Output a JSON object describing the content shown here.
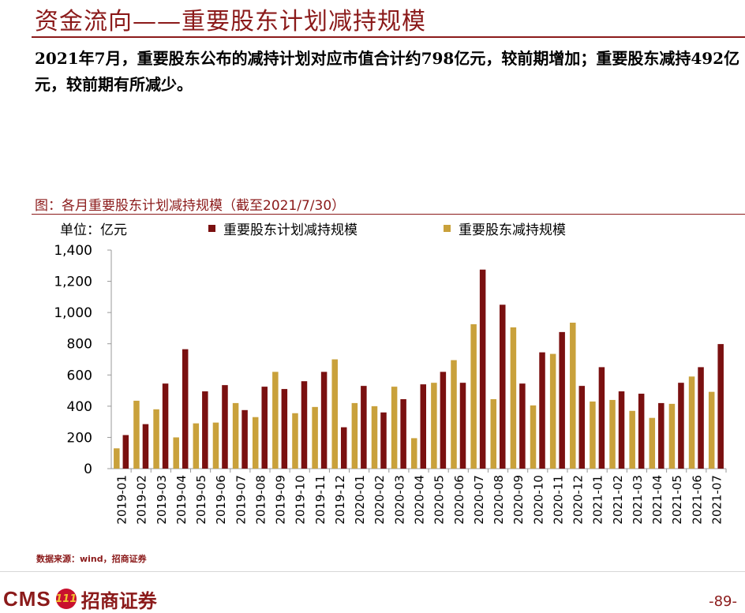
{
  "page": {
    "title": "资金流向——重要股东计划减持规模",
    "summary": "2021年7月，重要股东公布的减持计划对应市值合计约798亿元，较前期增加；重要股东减持492亿元，较前期有所减少。",
    "source": "数据来源：wind，招商证券",
    "page_number": "-89-",
    "logo_text": "CMS",
    "logo_emblem": "111",
    "logo_cn": "招商证券"
  },
  "chart_data": {
    "type": "bar",
    "title": "图：各月重要股东计划减持规模（截至2021/7/30）",
    "unit": "单位：亿元",
    "ylim": [
      0,
      1400
    ],
    "yticks": [
      0,
      200,
      400,
      600,
      800,
      1000,
      1200,
      1400
    ],
    "ytick_labels": [
      "0",
      "200",
      "400",
      "600",
      "800",
      "1,000",
      "1,200",
      "1,400"
    ],
    "grid": false,
    "legend_position": "top",
    "categories": [
      "2019-01",
      "2019-02",
      "2019-03",
      "2019-04",
      "2019-05",
      "2019-06",
      "2019-07",
      "2019-08",
      "2019-09",
      "2019-10",
      "2019-11",
      "2019-12",
      "2020-01",
      "2020-02",
      "2020-03",
      "2020-04",
      "2020-05",
      "2020-06",
      "2020-07",
      "2020-08",
      "2020-09",
      "2020-10",
      "2020-11",
      "2020-12",
      "2021-01",
      "2021-02",
      "2021-03",
      "2021-04",
      "2021-05",
      "2021-06",
      "2021-07"
    ],
    "series": [
      {
        "name": "重要股东减持规模",
        "color": "#C9A13B",
        "values": [
          130,
          435,
          380,
          200,
          290,
          295,
          420,
          330,
          620,
          355,
          395,
          700,
          420,
          400,
          525,
          195,
          550,
          695,
          925,
          445,
          905,
          405,
          735,
          935,
          430,
          440,
          370,
          325,
          415,
          590,
          492
        ]
      },
      {
        "name": "重要股东计划减持规模",
        "color": "#7A1010",
        "values": [
          215,
          285,
          545,
          765,
          495,
          535,
          375,
          525,
          510,
          560,
          620,
          265,
          530,
          360,
          445,
          540,
          620,
          550,
          1275,
          1050,
          545,
          745,
          875,
          530,
          650,
          495,
          480,
          420,
          550,
          650,
          798
        ]
      }
    ]
  }
}
